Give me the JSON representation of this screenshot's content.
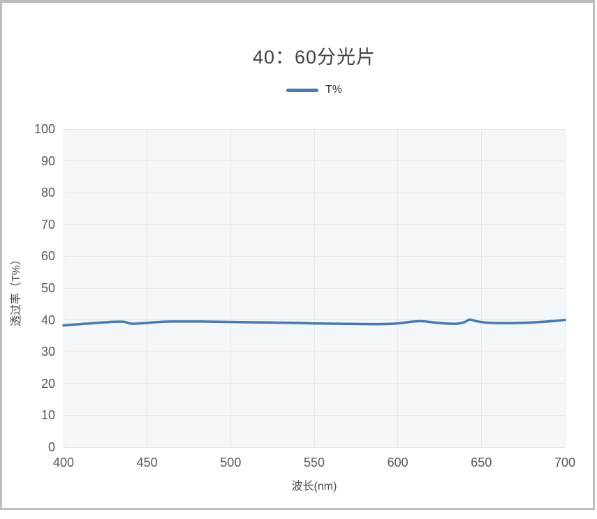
{
  "window": {
    "background": "#ffffff",
    "border_color": "#bcbcbc"
  },
  "chart_data": {
    "type": "line",
    "title": "40：60分光片",
    "xlabel": "波长(nm)",
    "ylabel": "透过率（T%）",
    "xlim": [
      400,
      700
    ],
    "ylim": [
      0,
      100
    ],
    "x_ticks": [
      400,
      450,
      500,
      550,
      600,
      650,
      700
    ],
    "y_ticks": [
      0,
      10,
      20,
      30,
      40,
      50,
      60,
      70,
      80,
      90,
      100
    ],
    "grid": true,
    "legend_position": "top-center",
    "plot_bg": "#f3f7fa",
    "grid_color": "#e3e8ec",
    "tick_color": "#595959",
    "legend": [
      {
        "label": "T%",
        "color": "#4a7aad"
      }
    ],
    "series": [
      {
        "name": "T%",
        "color": "#4a7aad",
        "x": [
          400,
          408,
          416,
          424,
          430,
          436,
          441,
          448,
          456,
          464,
          472,
          482,
          492,
          505,
          520,
          535,
          550,
          565,
          580,
          592,
          600,
          608,
          614,
          620,
          628,
          635,
          640,
          643,
          647,
          652,
          660,
          668,
          676,
          684,
          692,
          700
        ],
        "y": [
          38.3,
          38.6,
          38.9,
          39.2,
          39.4,
          39.4,
          38.8,
          39.0,
          39.3,
          39.5,
          39.5,
          39.5,
          39.4,
          39.3,
          39.2,
          39.1,
          38.9,
          38.8,
          38.7,
          38.7,
          38.9,
          39.4,
          39.6,
          39.3,
          38.9,
          38.8,
          39.3,
          40.1,
          39.6,
          39.2,
          39.0,
          39.0,
          39.1,
          39.3,
          39.6,
          40.0
        ]
      }
    ]
  }
}
